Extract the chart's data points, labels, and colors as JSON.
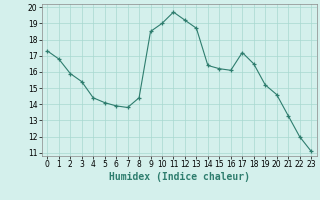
{
  "x": [
    0,
    1,
    2,
    3,
    4,
    5,
    6,
    7,
    8,
    9,
    10,
    11,
    12,
    13,
    14,
    15,
    16,
    17,
    18,
    19,
    20,
    21,
    22,
    23
  ],
  "y": [
    17.3,
    16.8,
    15.9,
    15.4,
    14.4,
    14.1,
    13.9,
    13.8,
    14.4,
    18.5,
    19.0,
    19.7,
    19.2,
    18.7,
    16.4,
    16.2,
    16.1,
    17.2,
    16.5,
    15.2,
    14.6,
    13.3,
    12.0,
    11.1
  ],
  "line_color": "#2e7d6e",
  "marker": "+",
  "marker_color": "#2e7d6e",
  "bg_color": "#d4f0ec",
  "grid_color": "#a8d8d0",
  "xlabel": "Humidex (Indice chaleur)",
  "xlim": [
    -0.5,
    23.5
  ],
  "ylim": [
    10.8,
    20.2
  ],
  "yticks": [
    11,
    12,
    13,
    14,
    15,
    16,
    17,
    18,
    19,
    20
  ],
  "xticks": [
    0,
    1,
    2,
    3,
    4,
    5,
    6,
    7,
    8,
    9,
    10,
    11,
    12,
    13,
    14,
    15,
    16,
    17,
    18,
    19,
    20,
    21,
    22,
    23
  ],
  "tick_fontsize": 5.5,
  "label_fontsize": 7
}
